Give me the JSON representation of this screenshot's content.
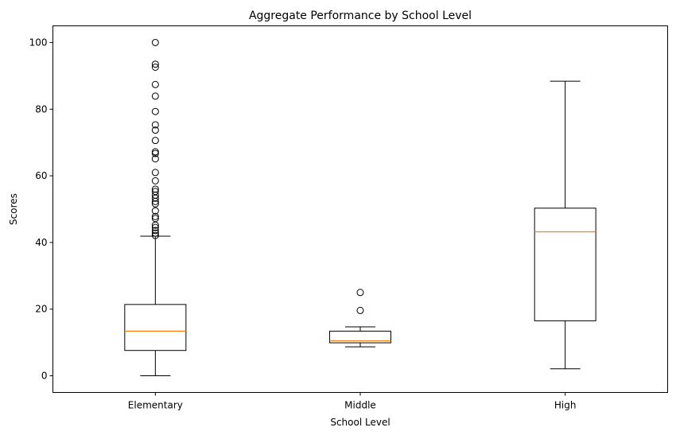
{
  "chart_data": {
    "type": "box",
    "title": "Aggregate Performance by School Level",
    "xlabel": "School Level",
    "ylabel": "Scores",
    "ylim": [
      -5,
      105
    ],
    "yticks": [
      0,
      20,
      40,
      60,
      80,
      100
    ],
    "grid": false,
    "median_color": "#ff7f0e",
    "box_color": "#000000",
    "groups": [
      {
        "category": "Elementary",
        "whisker_low": 0,
        "q1": 7.6,
        "median": 13.4,
        "q3": 21.4,
        "whisker_high": 41.9,
        "outliers": [
          42.1,
          42.8,
          43.6,
          44.5,
          45.2,
          47.2,
          47.8,
          49.5,
          51.6,
          52.3,
          53.3,
          54.2,
          55.3,
          56.0,
          58.5,
          61.0,
          65.1,
          66.7,
          67.2,
          70.6,
          73.7,
          75.3,
          79.3,
          83.9,
          87.4,
          92.6,
          93.5,
          100.0
        ]
      },
      {
        "category": "Middle",
        "whisker_low": 8.7,
        "q1": 9.9,
        "median": 10.5,
        "q3": 13.4,
        "whisker_high": 14.7,
        "outliers": [
          19.6,
          25.0
        ]
      },
      {
        "category": "High",
        "whisker_low": 2.1,
        "q1": 16.5,
        "median": 43.2,
        "q3": 50.3,
        "whisker_high": 88.4,
        "outliers": []
      }
    ]
  }
}
